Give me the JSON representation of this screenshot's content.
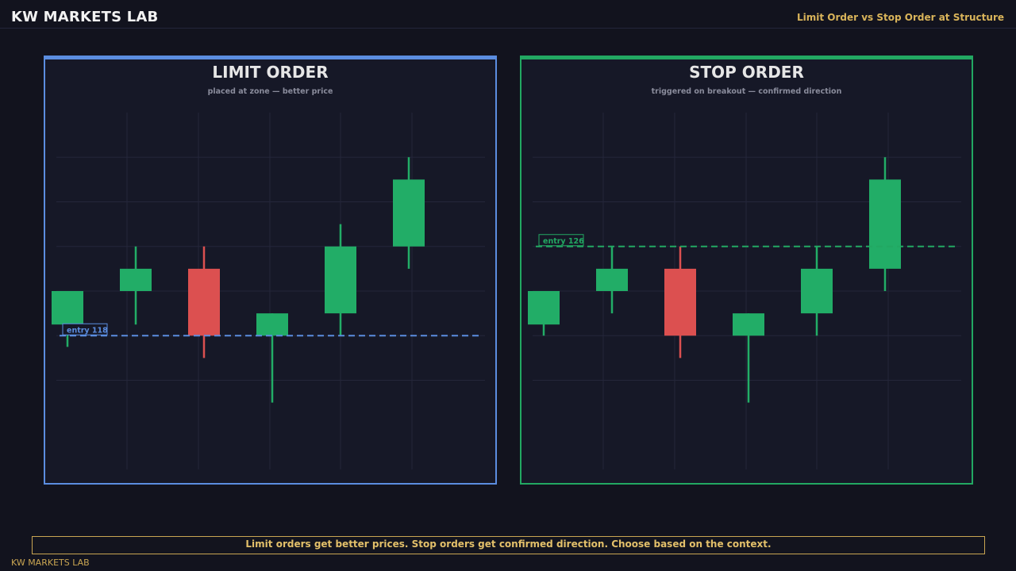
{
  "header": {
    "brand": "KW MARKETS LAB",
    "subtitle": "Limit Order vs Stop Order at Structure"
  },
  "colors": {
    "background": "#12131e",
    "panel_background": "#161827",
    "limit_accent": "#5b8de0",
    "stop_accent": "#22a862",
    "bullish": "#22ad67",
    "bearish": "#dc5050",
    "gold": "#d9b45a",
    "grid": "#24263a"
  },
  "chart_data": [
    {
      "type": "candlestick",
      "title": "LIMIT ORDER",
      "subtitle": "placed at zone — better price",
      "accent": "#5b8de0",
      "ylim": [
        106,
        138
      ],
      "grid": true,
      "candles": [
        {
          "open": 119,
          "high": 122,
          "low": 117,
          "close": 122
        },
        {
          "open": 122,
          "high": 126,
          "low": 119,
          "close": 124
        },
        {
          "open": 124,
          "high": 126,
          "low": 116,
          "close": 118
        },
        {
          "open": 118,
          "high": 120,
          "low": 112,
          "close": 120
        },
        {
          "open": 120,
          "high": 128,
          "low": 118,
          "close": 126
        },
        {
          "open": 126,
          "high": 134,
          "low": 124,
          "close": 132
        }
      ],
      "entry": {
        "price": 118,
        "label": "entry 118"
      }
    },
    {
      "type": "candlestick",
      "title": "STOP ORDER",
      "subtitle": "triggered on breakout — confirmed direction",
      "accent": "#22a862",
      "ylim": [
        106,
        138
      ],
      "grid": true,
      "candles": [
        {
          "open": 119,
          "high": 122,
          "low": 118,
          "close": 122
        },
        {
          "open": 122,
          "high": 126,
          "low": 120,
          "close": 124
        },
        {
          "open": 124,
          "high": 126,
          "low": 116,
          "close": 118
        },
        {
          "open": 118,
          "high": 120,
          "low": 112,
          "close": 120
        },
        {
          "open": 120,
          "high": 126,
          "low": 118,
          "close": 124
        },
        {
          "open": 124,
          "high": 134,
          "low": 122,
          "close": 132
        }
      ],
      "entry": {
        "price": 126,
        "label": "entry 126"
      }
    }
  ],
  "note": "Limit orders get better prices. Stop orders get confirmed direction. Choose based on the context.",
  "footer": "KW MARKETS LAB"
}
